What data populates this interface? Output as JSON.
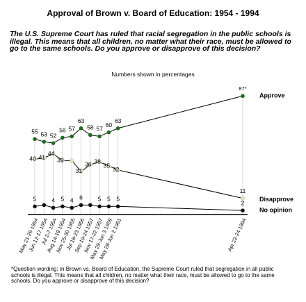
{
  "chart_data": {
    "type": "line",
    "title": "Approval of Brown v. Board of Education: 1954 - 1994",
    "subtitle": "The U.S. Supreme Court has ruled that racial segregation in the public schools is illegal.  This means that all children, no matter what their race, must be allowed to go to the same schools.  Do you approve or disapprove of this decision?",
    "note": "Numbers shown in percentages",
    "footnote": "*Question wording: In Brown vs. Board of Education, the Supreme Court ruled that segregation in all public schools is illegal. This means that all children, no matter what their race, must be allowed to go to the same schools. Do you approve or disapprove of this decision?",
    "categories": [
      "May 21-26 1954",
      "Jun 12-17 1954",
      "Jul 2-7 1954",
      "Aug 14-19 1954",
      "Nov 25-30 1955",
      "Jul 18-23 1956",
      "Sep 19-24 1957",
      "Nov 17-22 1957",
      "May 29-Jun 3 1959",
      "May 28-Jun 2 1961",
      "Apr 22-24 1994"
    ],
    "ylim": [
      0,
      100
    ],
    "series": [
      {
        "name": "Approve",
        "color": "#1f6b1f",
        "values": [
          55,
          53,
          52,
          56,
          57,
          63,
          58,
          57,
          60,
          63,
          87
        ],
        "value_labels": [
          "55",
          "53",
          "52",
          "56",
          "57",
          "63",
          "58",
          "57",
          "60",
          "63",
          "87*"
        ]
      },
      {
        "name": "Disapprove",
        "color": "#e6dfc0",
        "values": [
          40,
          41,
          44,
          39,
          39,
          31,
          36,
          38,
          35,
          32,
          11
        ],
        "value_labels": [
          "40",
          "41",
          "44",
          "39",
          null,
          "31",
          "36",
          "38",
          "35",
          "32",
          "11"
        ]
      },
      {
        "name": "No opinion",
        "color": "#111111",
        "values": [
          5,
          6,
          4,
          5,
          4,
          6,
          6,
          5,
          5,
          5,
          2
        ],
        "value_labels": [
          "5",
          null,
          "4",
          "5",
          "4",
          "6",
          null,
          "5",
          "5",
          "5",
          "2"
        ]
      }
    ]
  }
}
